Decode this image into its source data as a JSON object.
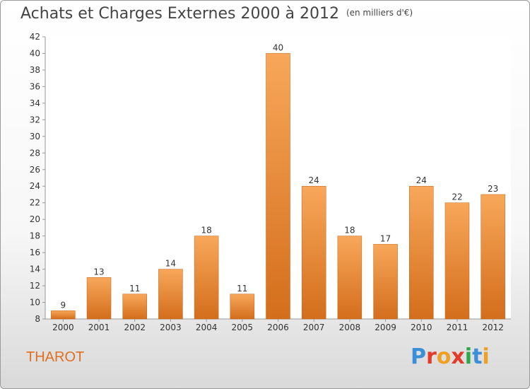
{
  "header": {
    "title": "Achats et Charges Externes 2000 à 2012",
    "unit": "(en milliers d'€)"
  },
  "footer": {
    "city": "THAROT",
    "brand_letters": [
      "P",
      "r",
      "o",
      "x",
      "i",
      "t",
      "i"
    ],
    "brand_colors": [
      "#3a8fd8",
      "#e43a2a",
      "#f0a020",
      "#e43a2a",
      "#2aa84a",
      "#3a8fd8",
      "#f0a020"
    ]
  },
  "colors": {
    "bar_top": "#f8a75a",
    "bar_bottom": "#d36e1c",
    "bar_edge": "#c2641a"
  },
  "chart_data": {
    "type": "bar",
    "title": "Achats et Charges Externes 2000 à 2012",
    "xlabel": "",
    "ylabel": "",
    "categories": [
      "2000",
      "2001",
      "2002",
      "2003",
      "2004",
      "2005",
      "2006",
      "2007",
      "2008",
      "2009",
      "2010",
      "2011",
      "2012"
    ],
    "values": [
      9,
      13,
      11,
      14,
      18,
      11,
      40,
      24,
      18,
      17,
      24,
      22,
      23
    ],
    "ylim": [
      8,
      42
    ],
    "yticks": [
      8,
      10,
      12,
      14,
      16,
      18,
      20,
      22,
      24,
      26,
      28,
      30,
      32,
      34,
      36,
      38,
      40,
      42
    ],
    "grid": false,
    "data_labels": true
  }
}
